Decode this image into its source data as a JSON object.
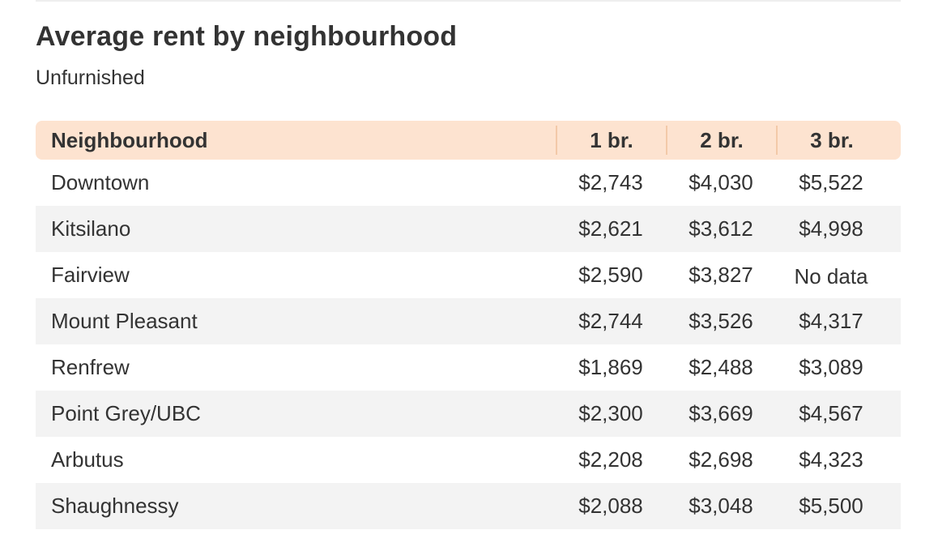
{
  "chart_data": {
    "type": "table",
    "title": "Average rent by neighbourhood",
    "subtitle": "Unfurnished",
    "columns": [
      "Neighbourhood",
      "1 br.",
      "2 br.",
      "3 br."
    ],
    "rows": [
      {
        "name": "Downtown",
        "values": [
          "$2,743",
          "$4,030",
          "$5,522"
        ]
      },
      {
        "name": "Kitsilano",
        "values": [
          "$2,621",
          "$3,612",
          "$4,998"
        ]
      },
      {
        "name": "Fairview",
        "values": [
          "$2,590",
          "$3,827",
          "No data"
        ]
      },
      {
        "name": "Mount Pleasant",
        "values": [
          "$2,744",
          "$3,526",
          "$4,317"
        ]
      },
      {
        "name": "Renfrew",
        "values": [
          "$1,869",
          "$2,488",
          "$3,089"
        ]
      },
      {
        "name": "Point Grey/UBC",
        "values": [
          "$2,300",
          "$3,669",
          "$4,567"
        ]
      },
      {
        "name": "Arbutus",
        "values": [
          "$2,208",
          "$2,698",
          "$4,323"
        ]
      },
      {
        "name": "Shaughnessy",
        "values": [
          "$2,088",
          "$3,048",
          "$5,500"
        ]
      }
    ],
    "colors": {
      "header_bg": "#fde3d0",
      "header_divider": "#f3c9a8",
      "alt_row_bg": "#f3f3f3",
      "text": "#333333"
    }
  }
}
